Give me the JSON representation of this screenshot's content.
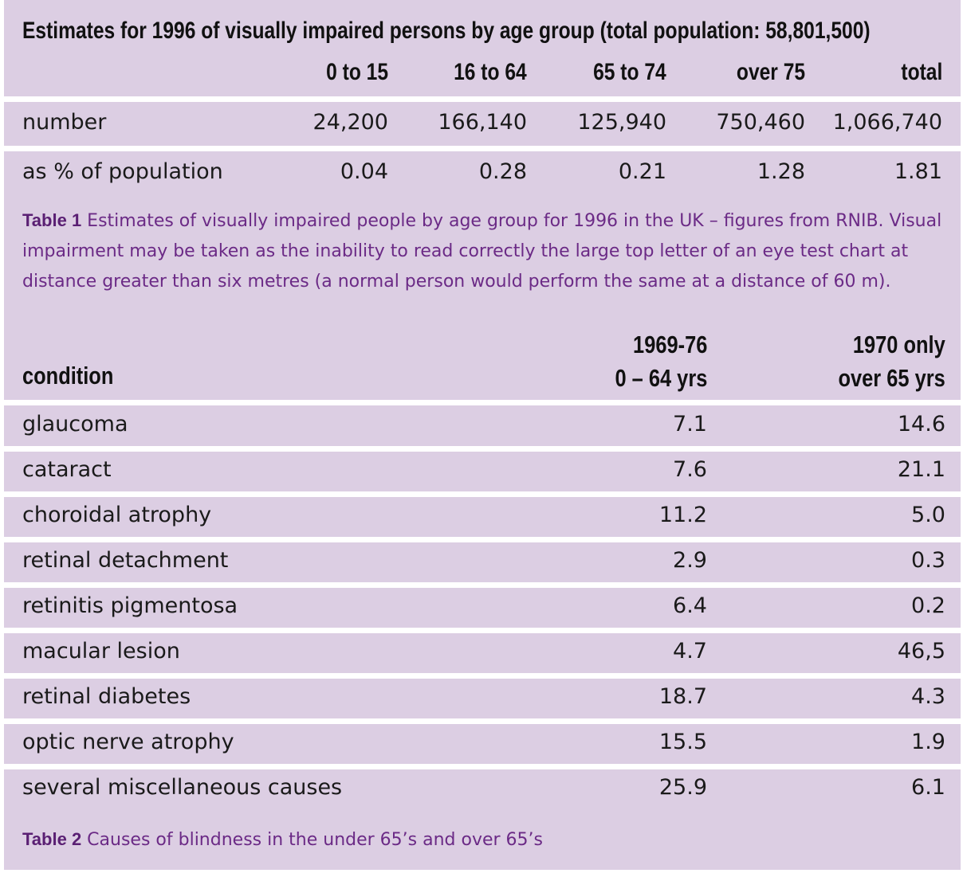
{
  "table1": {
    "title": "Estimates for 1996 of visually impaired persons by age group (total population: 58,801,500)",
    "headers": [
      "0 to 15",
      "16 to 64",
      "65 to 74",
      "over 75",
      "total"
    ],
    "rows": [
      {
        "label": "number",
        "values": [
          "24,200",
          "166,140",
          "125,940",
          "750,460",
          "1,066,740"
        ]
      },
      {
        "label": "as % of population",
        "values": [
          "0.04",
          "0.28",
          "0.21",
          "1.28",
          "1.81"
        ]
      }
    ],
    "caption_label": "Table 1",
    "caption_text": " Estimates of visually impaired people by age group for 1996 in the UK – figures from RNIB. Visual impairment may be taken as the inability to read correctly the large top letter of an eye test chart at distance greater than six metres (a normal person would perform the same at a distance of 60 m)."
  },
  "table2": {
    "condition_header": "condition",
    "col1_header_line1": "1969-76",
    "col1_header_line2": "0 – 64 yrs",
    "col2_header_line1": "1970 only",
    "col2_header_line2": "over 65 yrs",
    "rows": [
      {
        "label": "glaucoma",
        "a": "7.1",
        "b": "14.6"
      },
      {
        "label": "cataract",
        "a": "7.6",
        "b": "21.1"
      },
      {
        "label": "choroidal atrophy",
        "a": "11.2",
        "b": "5.0"
      },
      {
        "label": "retinal detachment",
        "a": "2.9",
        "b": "0.3"
      },
      {
        "label": "retinitis pigmentosa",
        "a": "6.4",
        "b": "0.2"
      },
      {
        "label": "macular lesion",
        "a": "4.7",
        "b": "46,5"
      },
      {
        "label": "retinal diabetes",
        "a": "18.7",
        "b": "4.3"
      },
      {
        "label": "optic nerve atrophy",
        "a": "15.5",
        "b": "1.9"
      },
      {
        "label": "several miscellaneous causes",
        "a": "25.9",
        "b": "6.1"
      }
    ],
    "caption_label": "Table 2",
    "caption_text": " Causes of blindness in the under 65’s and over 65’s"
  }
}
